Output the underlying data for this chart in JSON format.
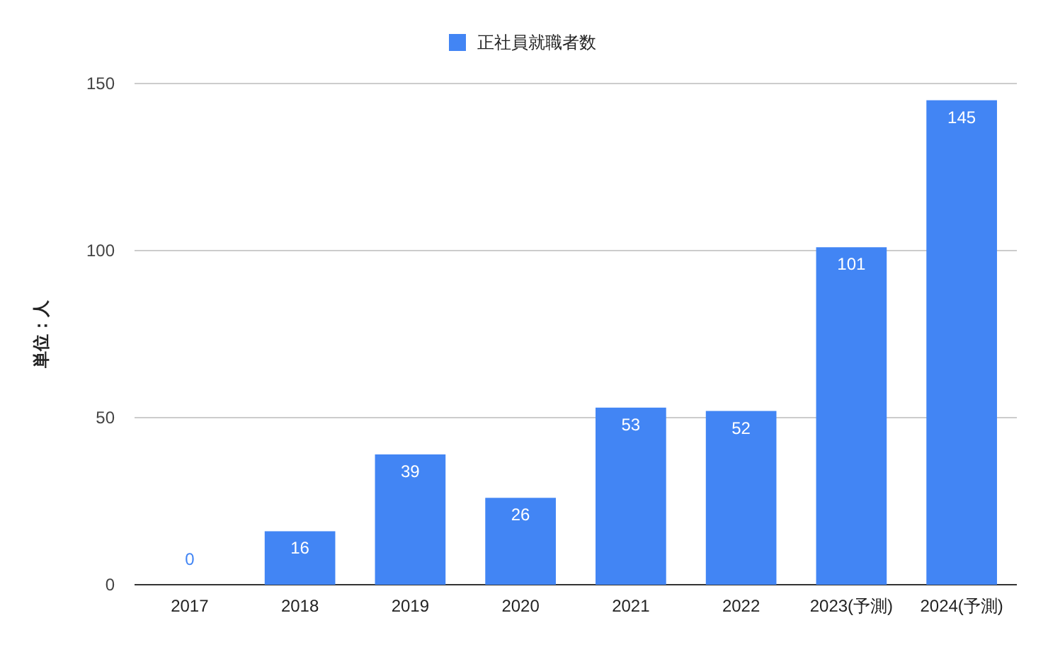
{
  "chart_data": {
    "type": "bar",
    "ylabel": "単位：人",
    "categories": [
      "2017",
      "2018",
      "2019",
      "2020",
      "2021",
      "2022",
      "2023(予測)",
      "2024(予測)"
    ],
    "series": [
      {
        "name": "正社員就職者数",
        "color": "#4285f4",
        "values": [
          0,
          16,
          39,
          26,
          53,
          52,
          101,
          145
        ]
      }
    ],
    "ylim": [
      0,
      150
    ],
    "yticks": [
      0,
      50,
      100,
      150
    ],
    "grid": "y",
    "legend": "top",
    "data_labels": true
  }
}
